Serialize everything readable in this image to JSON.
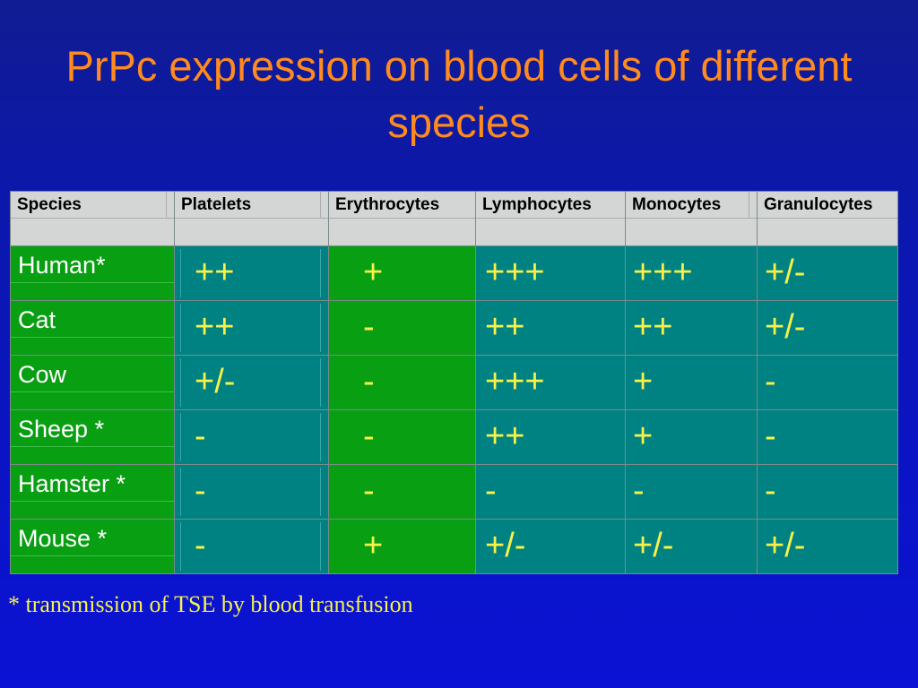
{
  "title": "PrPc expression on blood cells of different species",
  "table": {
    "headers": [
      "Species",
      "Platelets",
      "Erythrocytes",
      "Lymphocytes",
      "Monocytes",
      "Granulocytes"
    ],
    "rows": [
      {
        "species": "Human*",
        "values": [
          "++",
          "+",
          "+++",
          "+++",
          "+/-"
        ]
      },
      {
        "species": "Cat",
        "values": [
          "++",
          "-",
          "++",
          "++",
          "+/-"
        ]
      },
      {
        "species": "Cow",
        "values": [
          "+/-",
          "-",
          "+++",
          "+",
          "-"
        ]
      },
      {
        "species": "Sheep *",
        "values": [
          "-",
          "-",
          "++",
          "+",
          "-"
        ]
      },
      {
        "species": "Hamster *",
        "values": [
          "-",
          "-",
          "-",
          "-",
          "-"
        ]
      },
      {
        "species": "Mouse *",
        "values": [
          "-",
          "+",
          "+/-",
          "+/-",
          "+/-"
        ]
      }
    ]
  },
  "footnote": "* transmission of TSE by blood transfusion",
  "colors": {
    "background": "#0b17b0",
    "title": "#ff8a1e",
    "header_bg": "#d4d6d6",
    "species_bg": "#099f12",
    "value_bg": "#008282",
    "value_text": "#f7f24a"
  }
}
